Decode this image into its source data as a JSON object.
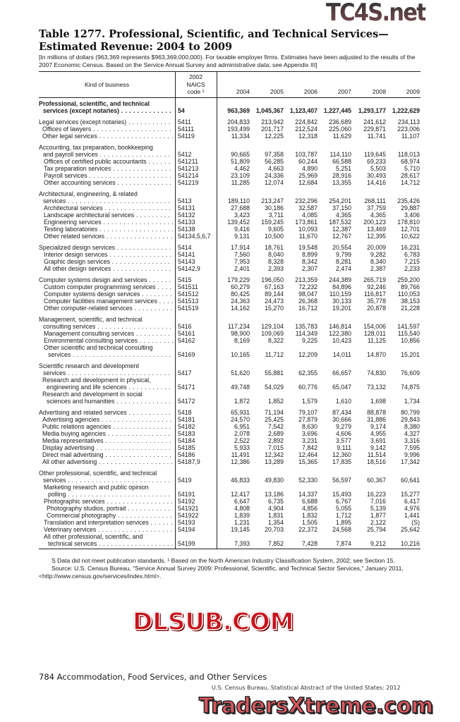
{
  "title": {
    "line1": "Table 1277. Professional, Scientific, and Technical Services—",
    "line2": "Estimated Revenue: 2004 to 2009"
  },
  "headnote": "[In millions of dollars (963,369 represents $963,369,000,000). For taxable employer firms. Estimates have been adjusted to the results of the 2007 Economic Census. Based on the Service Annual Survey and administrative data; see Appendix III]",
  "columns": {
    "kind": "Kind of business",
    "code_lines": [
      "2002",
      "NAICS",
      "code ¹"
    ],
    "years": [
      "2004",
      "2005",
      "2006",
      "2007",
      "2008",
      "2009"
    ]
  },
  "groups": [
    {
      "rows": [
        {
          "lines": [
            "Professional, scientific, and technical",
            "services (except notaries)"
          ],
          "code": "54",
          "values": [
            "963,369",
            "1,045,367",
            "1,123,407",
            "1,227,445",
            "1,293,177",
            "1,222,629"
          ],
          "level": 0,
          "bold": true
        }
      ]
    },
    {
      "rows": [
        {
          "lines": [
            "Legal services (except notaries)"
          ],
          "code": "5411",
          "values": [
            "204,833",
            "213,942",
            "224,842",
            "236,689",
            "241,612",
            "234,113"
          ],
          "level": 0
        },
        {
          "lines": [
            "Offices of lawyers"
          ],
          "code": "54111",
          "values": [
            "193,499",
            "201,717",
            "212,524",
            "225,060",
            "229,871",
            "223,006"
          ],
          "level": 1
        },
        {
          "lines": [
            "Other legal services"
          ],
          "code": "54119",
          "values": [
            "11,334",
            "12,225",
            "12,318",
            "11,629",
            "11,741",
            "11,107"
          ],
          "level": 1
        }
      ]
    },
    {
      "rows": [
        {
          "lines": [
            "Accounting, tax preparation, bookkeeping",
            "and payroll services"
          ],
          "code": "5412",
          "values": [
            "90,665",
            "97,358",
            "103,787",
            "114,110",
            "119,645",
            "118,013"
          ],
          "level": 0
        },
        {
          "lines": [
            "Offices of certified public accountants"
          ],
          "code": "541211",
          "values": [
            "51,809",
            "56,285",
            "60,244",
            "66,588",
            "69,233",
            "68,974"
          ],
          "level": 2
        },
        {
          "lines": [
            "Tax preparation services"
          ],
          "code": "541213",
          "values": [
            "4,462",
            "4,663",
            "4,890",
            "5,251",
            "5,503",
            "5,710"
          ],
          "level": 2
        },
        {
          "lines": [
            "Payroll services"
          ],
          "code": "541214",
          "values": [
            "23,109",
            "24,336",
            "25,969",
            "28,916",
            "30,493",
            "28,617"
          ],
          "level": 2
        },
        {
          "lines": [
            "Other accounting services"
          ],
          "code": "541219",
          "values": [
            "11,285",
            "12,074",
            "12,684",
            "13,355",
            "14,416",
            "14,712"
          ],
          "level": 2
        }
      ]
    },
    {
      "rows": [
        {
          "lines": [
            "Architectural, engineering, & related",
            "services"
          ],
          "code": "5413",
          "values": [
            "189,110",
            "213,247",
            "232,296",
            "254,201",
            "268,111",
            "235,426"
          ],
          "level": 0
        },
        {
          "lines": [
            "Architectural services"
          ],
          "code": "54131",
          "values": [
            "27,688",
            "30,186",
            "32,587",
            "37,150",
            "37,759",
            "29,887"
          ],
          "level": 2
        },
        {
          "lines": [
            "Landscape architectural services"
          ],
          "code": "54132",
          "values": [
            "3,423",
            "3,711",
            "4,085",
            "4,365",
            "4,365",
            "3,406"
          ],
          "level": 2
        },
        {
          "lines": [
            "Engineering services"
          ],
          "code": "54133",
          "values": [
            "139,452",
            "159,245",
            "173,861",
            "187,532",
            "200,123",
            "178,810"
          ],
          "level": 2
        },
        {
          "lines": [
            "Testing laboratories"
          ],
          "code": "54138",
          "values": [
            "9,416",
            "9,605",
            "10,093",
            "12,387",
            "13,469",
            "12,701"
          ],
          "level": 2
        },
        {
          "lines": [
            "Other related services"
          ],
          "code": "54134,5,6,7",
          "values": [
            "9,131",
            "10,500",
            "11,670",
            "12,767",
            "12,395",
            "10,622"
          ],
          "level": 2
        }
      ]
    },
    {
      "rows": [
        {
          "lines": [
            "Specialized design services"
          ],
          "code": "5414",
          "values": [
            "17,914",
            "18,761",
            "19,548",
            "20,554",
            "20,009",
            "16,231"
          ],
          "level": 0
        },
        {
          "lines": [
            "Interior design services"
          ],
          "code": "54141",
          "values": [
            "7,560",
            "8,040",
            "8,899",
            "9,799",
            "9,282",
            "6,783"
          ],
          "level": 2
        },
        {
          "lines": [
            "Graphic design services"
          ],
          "code": "54143",
          "values": [
            "7,953",
            "8,328",
            "8,342",
            "8,281",
            "8,340",
            "7,215"
          ],
          "level": 2
        },
        {
          "lines": [
            "All other design services"
          ],
          "code": "54142,9",
          "values": [
            "2,401",
            "2,393",
            "2,307",
            "2,474",
            "2,387",
            "2,233"
          ],
          "level": 2
        }
      ]
    },
    {
      "rows": [
        {
          "lines": [
            "Computer systems design and services"
          ],
          "code": "5415",
          "values": [
            "179,229",
            "196,050",
            "213,359",
            "244,389",
            "265,719",
            "259,200"
          ],
          "level": 0
        },
        {
          "lines": [
            "Custom computer programming services"
          ],
          "code": "541511",
          "values": [
            "60,279",
            "67,163",
            "72,232",
            "84,896",
            "92,246",
            "89,766"
          ],
          "level": 2
        },
        {
          "lines": [
            "Computer systems design services"
          ],
          "code": "541512",
          "values": [
            "80,425",
            "89,144",
            "98,047",
            "110,159",
            "116,817",
            "110,053"
          ],
          "level": 2
        },
        {
          "lines": [
            "Computer facilities management services"
          ],
          "code": "541513",
          "values": [
            "24,363",
            "24,473",
            "26,368",
            "30,133",
            "35,778",
            "38,153"
          ],
          "level": 2
        },
        {
          "lines": [
            "Other computer-related services"
          ],
          "code": "541519",
          "values": [
            "14,162",
            "15,270",
            "16,712",
            "19,201",
            "20,878",
            "21,228"
          ],
          "level": 2
        }
      ]
    },
    {
      "rows": [
        {
          "lines": [
            "Management, scientific, and technical",
            "consulting services"
          ],
          "code": "5416",
          "values": [
            "117,234",
            "129,104",
            "135,783",
            "146,814",
            "154,006",
            "141,597"
          ],
          "level": 0
        },
        {
          "lines": [
            "Management consulting services"
          ],
          "code": "54161",
          "values": [
            "98,900",
            "109,069",
            "114,349",
            "122,380",
            "128,011",
            "115,540"
          ],
          "level": 2
        },
        {
          "lines": [
            "Environmental consulting services"
          ],
          "code": "54162",
          "values": [
            "8,169",
            "8,322",
            "9,225",
            "10,423",
            "11,125",
            "10,856"
          ],
          "level": 2
        },
        {
          "lines": [
            "Other scientific and technical consulting",
            "services"
          ],
          "code": "54169",
          "values": [
            "10,165",
            "11,712",
            "12,209",
            "14,011",
            "14,870",
            "15,201"
          ],
          "level": 2
        }
      ]
    },
    {
      "rows": [
        {
          "lines": [
            "Scientific research and development",
            "services"
          ],
          "code": "5417",
          "values": [
            "51,620",
            "55,881",
            "62,355",
            "66,657",
            "74,830",
            "76,609"
          ],
          "level": 0
        },
        {
          "lines": [
            "Research and development in physical,",
            "engineering and life sciences"
          ],
          "code": "54171",
          "values": [
            "49,748",
            "54,029",
            "60,776",
            "65,047",
            "73,132",
            "74,875"
          ],
          "level": 1
        },
        {
          "lines": [
            "Research and development in social",
            "sciences and humanities"
          ],
          "code": "54172",
          "values": [
            "1,872",
            "1,852",
            "1,579",
            "1,610",
            "1,698",
            "1,734"
          ],
          "level": 1
        }
      ]
    },
    {
      "rows": [
        {
          "lines": [
            "Advertising and related services"
          ],
          "code": "5418",
          "values": [
            "65,931",
            "71,194",
            "79,107",
            "87,434",
            "88,878",
            "80,799"
          ],
          "level": 0
        },
        {
          "lines": [
            "Advertising agencies"
          ],
          "code": "54181",
          "values": [
            "24,570",
            "25,425",
            "27,879",
            "30,666",
            "31,886",
            "29,843"
          ],
          "level": 1
        },
        {
          "lines": [
            "Public relations agencies"
          ],
          "code": "54182",
          "values": [
            "6,951",
            "7,542",
            "8,630",
            "9,279",
            "9,174",
            "8,380"
          ],
          "level": 1
        },
        {
          "lines": [
            "Media buying agencies"
          ],
          "code": "54183",
          "values": [
            "2,078",
            "2,689",
            "3,696",
            "4,606",
            "4,955",
            "4,327"
          ],
          "level": 1
        },
        {
          "lines": [
            "Media representatives"
          ],
          "code": "54184",
          "values": [
            "2,522",
            "2,892",
            "3,231",
            "3,577",
            "3,691",
            "3,316"
          ],
          "level": 1
        },
        {
          "lines": [
            "Display advertising"
          ],
          "code": "54185",
          "values": [
            "5,933",
            "7,015",
            "7,842",
            "9,111",
            "9,142",
            "7,595"
          ],
          "level": 1
        },
        {
          "lines": [
            "Direct mail advertising"
          ],
          "code": "54186",
          "values": [
            "11,491",
            "12,342",
            "12,464",
            "12,360",
            "11,514",
            "9,996"
          ],
          "level": 1
        },
        {
          "lines": [
            "All other advertising"
          ],
          "code": "54187,9",
          "values": [
            "12,386",
            "13,289",
            "15,365",
            "17,835",
            "18,516",
            "17,342"
          ],
          "level": 1
        }
      ]
    },
    {
      "rows": [
        {
          "lines": [
            "Other professional, scientific, and technical",
            "services"
          ],
          "code": "5419",
          "values": [
            "46,833",
            "49,830",
            "52,330",
            "56,597",
            "60,367",
            "60,641"
          ],
          "level": 0
        },
        {
          "lines": [
            "Marketing research and public opinion",
            "polling"
          ],
          "code": "54191",
          "values": [
            "12,417",
            "13,186",
            "14,337",
            "15,493",
            "16,223",
            "15,277"
          ],
          "level": 2
        },
        {
          "lines": [
            "Photographic services"
          ],
          "code": "54192",
          "values": [
            "6,647",
            "6,735",
            "6,688",
            "6,767",
            "7,016",
            "6,417"
          ],
          "level": 2
        },
        {
          "lines": [
            "Photography studios, portrait"
          ],
          "code": "541921",
          "values": [
            "4,808",
            "4,904",
            "4,856",
            "5,055",
            "5,139",
            "4,976"
          ],
          "level": 3
        },
        {
          "lines": [
            "Commercial photography"
          ],
          "code": "541922",
          "values": [
            "1,839",
            "1,831",
            "1,832",
            "1,712",
            "1,877",
            "1,441"
          ],
          "level": 3
        },
        {
          "lines": [
            "Translation and interpretation services"
          ],
          "code": "54193",
          "values": [
            "1,231",
            "1,354",
            "1,505",
            "1,895",
            "2,122",
            "(S)"
          ],
          "level": 2
        },
        {
          "lines": [
            "Veterinary services"
          ],
          "code": "54194",
          "values": [
            "19,145",
            "20,703",
            "22,372",
            "24,568",
            "25,794",
            "25,642"
          ],
          "level": 2
        },
        {
          "lines": [
            "All other professional, scientific, and",
            "technical services"
          ],
          "code": "54199",
          "values": [
            "7,393",
            "7,852",
            "7,428",
            "7,874",
            "9,212",
            "10,216"
          ],
          "level": 2
        }
      ]
    }
  ],
  "footnotes": [
    "S Data did not meet publication standards. ¹ Based on the North American Industry Classification System, 2002; see Section 15.",
    "Source: U.S. Census Bureau, \"Service Annual Survey 2009: Professional, Scientific, and Technical Sector Services,\" January 2011, <http://www.census.gov/services/index.html>."
  ],
  "page_footer": "784  Accommodation, Food Services, and Other Services",
  "source_line": "U.S. Census Bureau, Statistical Abstract of the United States: 2012",
  "watermarks": [
    "TC4S.net",
    "DLSUB.COM",
    "TradersXtreme.com"
  ]
}
